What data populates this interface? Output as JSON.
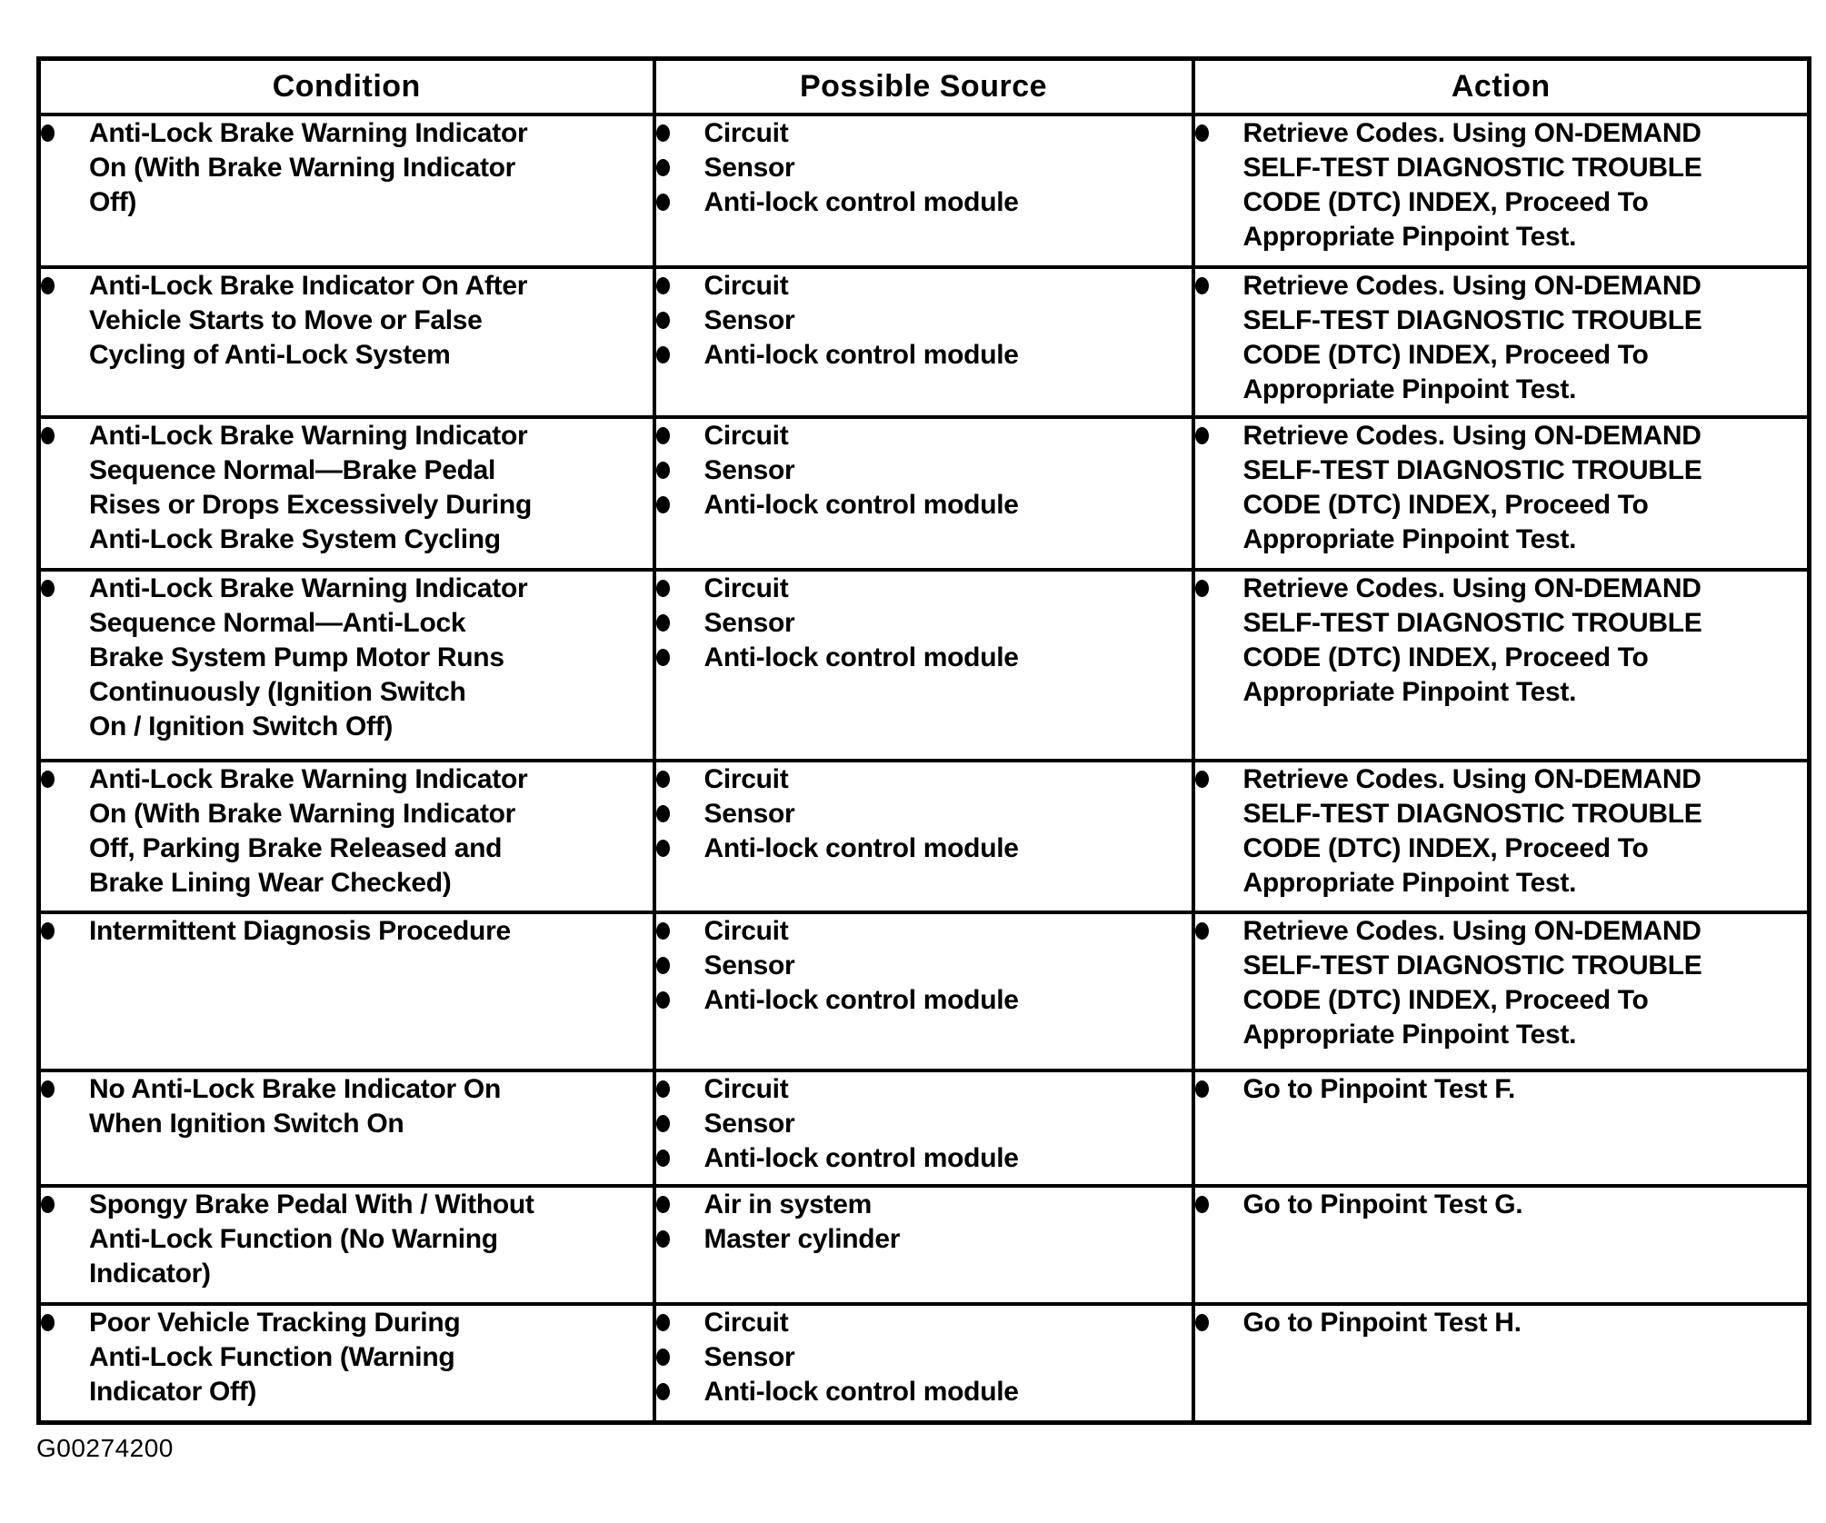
{
  "figure_id": "G00274200",
  "table": {
    "headers": [
      "Condition",
      "Possible Source",
      "Action"
    ],
    "rows": [
      {
        "condition": "Anti-Lock Brake Warning Indicator\nOn (With Brake Warning Indicator\nOff)",
        "sources": [
          "Circuit",
          "Sensor",
          "Anti-lock control module"
        ],
        "action": "Retrieve Codes. Using ON-DEMAND\nSELF-TEST DIAGNOSTIC TROUBLE\nCODE (DTC) INDEX, Proceed To\nAppropriate Pinpoint Test."
      },
      {
        "condition": "Anti-Lock Brake Indicator On After\nVehicle Starts to Move or False\nCycling of Anti-Lock System",
        "sources": [
          "Circuit",
          "Sensor",
          "Anti-lock control module"
        ],
        "action": "Retrieve Codes. Using ON-DEMAND\nSELF-TEST DIAGNOSTIC TROUBLE\nCODE (DTC) INDEX, Proceed To\nAppropriate Pinpoint Test."
      },
      {
        "condition": "Anti-Lock Brake Warning Indicator\nSequence Normal—Brake Pedal\nRises or Drops Excessively During\nAnti-Lock Brake System Cycling",
        "sources": [
          "Circuit",
          "Sensor",
          "Anti-lock control module"
        ],
        "action": "Retrieve Codes. Using ON-DEMAND\nSELF-TEST DIAGNOSTIC TROUBLE\nCODE (DTC) INDEX, Proceed To\nAppropriate Pinpoint Test."
      },
      {
        "condition": "Anti-Lock Brake Warning Indicator\nSequence Normal—Anti-Lock\nBrake System Pump Motor Runs\nContinuously (Ignition Switch\nOn / Ignition Switch Off)",
        "sources": [
          "Circuit",
          "Sensor",
          "Anti-lock control module"
        ],
        "action": "Retrieve Codes. Using ON-DEMAND\nSELF-TEST DIAGNOSTIC TROUBLE\nCODE (DTC) INDEX, Proceed To\nAppropriate Pinpoint Test."
      },
      {
        "condition": "Anti-Lock Brake Warning Indicator\nOn (With Brake Warning Indicator\nOff, Parking Brake Released and\nBrake Lining Wear Checked)",
        "sources": [
          "Circuit",
          "Sensor",
          "Anti-lock control module"
        ],
        "action": "Retrieve Codes. Using ON-DEMAND\nSELF-TEST DIAGNOSTIC TROUBLE\nCODE (DTC) INDEX, Proceed To\nAppropriate Pinpoint Test."
      },
      {
        "condition": "Intermittent Diagnosis Procedure",
        "sources": [
          "Circuit",
          "Sensor",
          "Anti-lock control module"
        ],
        "action": "Retrieve Codes. Using ON-DEMAND\nSELF-TEST DIAGNOSTIC TROUBLE\nCODE (DTC) INDEX, Proceed To\nAppropriate Pinpoint Test."
      },
      {
        "condition": "No Anti-Lock Brake Indicator On\nWhen Ignition Switch On",
        "sources": [
          "Circuit",
          "Sensor",
          "Anti-lock control module"
        ],
        "action": "Go to Pinpoint Test F."
      },
      {
        "condition": "Spongy Brake Pedal With / Without\nAnti-Lock Function (No Warning\nIndicator)",
        "sources": [
          "Air in system",
          "Master cylinder"
        ],
        "action": "Go to Pinpoint Test G."
      },
      {
        "condition": "Poor Vehicle Tracking During\nAnti-Lock Function (Warning\nIndicator Off)",
        "sources": [
          "Circuit",
          "Sensor",
          "Anti-lock control module"
        ],
        "action": "Go to Pinpoint Test H."
      }
    ]
  }
}
